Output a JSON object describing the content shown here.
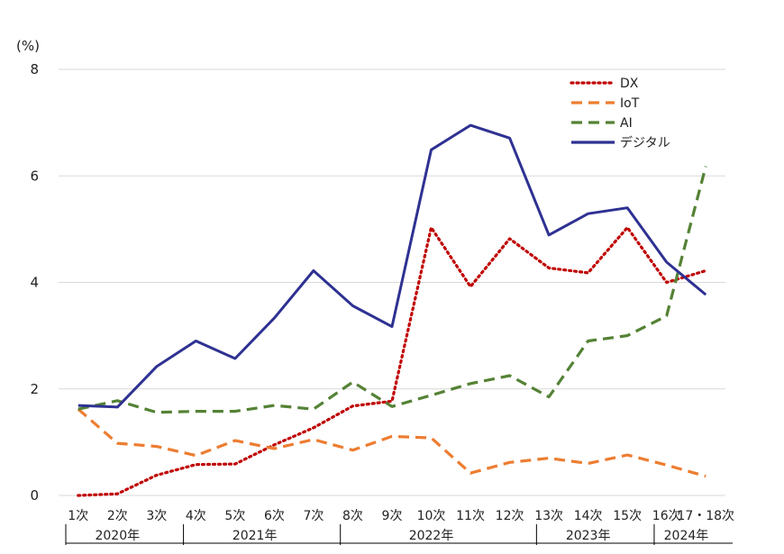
{
  "chart_data": {
    "type": "line",
    "ylabel": "(%)",
    "ylim": [
      0,
      8
    ],
    "yticks": [
      "0",
      "2",
      "4",
      "6",
      "8"
    ],
    "grid": true,
    "legend_position": "top-right",
    "categories": [
      "1次",
      "2次",
      "3次",
      "4次",
      "5次",
      "6次",
      "7次",
      "8次",
      "9次",
      "10次",
      "11次",
      "12次",
      "13次",
      "14次",
      "15次",
      "16次",
      "17・18次"
    ],
    "year_groups": [
      {
        "label": "2020年",
        "start": 0,
        "end": 2
      },
      {
        "label": "2021年",
        "start": 3,
        "end": 6
      },
      {
        "label": "2022年",
        "start": 7,
        "end": 11
      },
      {
        "label": "2023年",
        "start": 12,
        "end": 14
      },
      {
        "label": "2024年",
        "start": 15,
        "end": 16
      }
    ],
    "series": [
      {
        "name": "DX",
        "color": "#c00000",
        "style": "dotted",
        "values": [
          0.0,
          0.03,
          0.38,
          0.58,
          0.59,
          0.95,
          1.27,
          1.68,
          1.77,
          5.03,
          3.92,
          4.82,
          4.27,
          4.18,
          5.03,
          4.0,
          4.22
        ]
      },
      {
        "name": "IoT",
        "color": "#ed7d31",
        "style": "dashed",
        "values": [
          1.62,
          0.98,
          0.92,
          0.75,
          1.03,
          0.88,
          1.05,
          0.85,
          1.11,
          1.08,
          0.42,
          0.62,
          0.7,
          0.6,
          0.76,
          0.57,
          0.36
        ]
      },
      {
        "name": "AI",
        "color": "#548235",
        "style": "dashed",
        "values": [
          1.62,
          1.78,
          1.56,
          1.58,
          1.58,
          1.69,
          1.62,
          2.13,
          1.67,
          1.88,
          2.1,
          2.25,
          1.85,
          2.9,
          3.0,
          3.37,
          6.18
        ]
      },
      {
        "name": "デジタル",
        "color": "#2e3192",
        "style": "solid",
        "values": [
          1.69,
          1.66,
          2.42,
          2.9,
          2.57,
          3.33,
          4.22,
          3.56,
          3.17,
          6.49,
          6.95,
          6.71,
          4.89,
          5.29,
          5.4,
          4.38,
          3.77
        ]
      }
    ]
  }
}
